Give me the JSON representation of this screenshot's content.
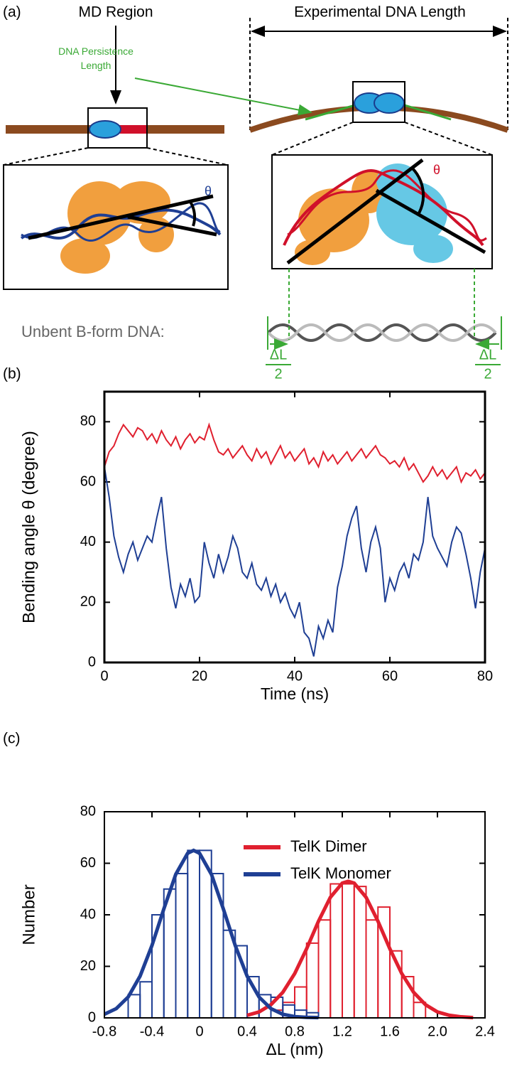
{
  "panel_a": {
    "label": "(a)",
    "md_region": "MD Region",
    "experimental_length": "Experimental DNA Length",
    "persistence_length": "DNA Persistence Length",
    "theta_monomer": "θ",
    "theta_dimer": "θ",
    "unbent_label": "Unbent B-form DNA:",
    "delta_l": "ΔL",
    "half": "2"
  },
  "chart_data": [
    {
      "type": "line",
      "panel_label": "(b)",
      "xlabel": "Time (ns)",
      "ylabel": "Bending angle θ (degree)",
      "xlim": [
        0,
        80
      ],
      "xticks": [
        0,
        20,
        40,
        60,
        80
      ],
      "ylim": [
        0,
        90
      ],
      "yticks": [
        0,
        20,
        40,
        60,
        80
      ],
      "x": [
        0,
        1,
        2,
        3,
        4,
        5,
        6,
        7,
        8,
        9,
        10,
        11,
        12,
        13,
        14,
        15,
        16,
        17,
        18,
        19,
        20,
        21,
        22,
        23,
        24,
        25,
        26,
        27,
        28,
        29,
        30,
        31,
        32,
        33,
        34,
        35,
        36,
        37,
        38,
        39,
        40,
        41,
        42,
        43,
        44,
        45,
        46,
        47,
        48,
        49,
        50,
        51,
        52,
        53,
        54,
        55,
        56,
        57,
        58,
        59,
        60,
        61,
        62,
        63,
        64,
        65,
        66,
        67,
        68,
        69,
        70,
        71,
        72,
        73,
        74,
        75,
        76,
        77,
        78,
        79,
        80
      ],
      "series": [
        {
          "color": "#e0202f",
          "values": [
            65,
            70,
            72,
            76,
            79,
            77,
            75,
            78,
            77,
            74,
            76,
            73,
            77,
            74,
            72,
            75,
            71,
            74,
            76,
            73,
            75,
            74,
            79,
            74,
            70,
            69,
            71,
            68,
            70,
            72,
            69,
            67,
            71,
            68,
            70,
            66,
            69,
            72,
            68,
            70,
            67,
            69,
            71,
            66,
            68,
            65,
            70,
            67,
            69,
            66,
            68,
            70,
            67,
            69,
            71,
            68,
            70,
            72,
            69,
            68,
            66,
            67,
            65,
            68,
            64,
            66,
            63,
            60,
            62,
            65,
            62,
            64,
            61,
            63,
            65,
            60,
            63,
            62,
            64,
            61,
            63
          ]
        },
        {
          "color": "#1f3f94",
          "values": [
            65,
            55,
            42,
            35,
            30,
            36,
            40,
            34,
            38,
            42,
            40,
            48,
            55,
            38,
            25,
            18,
            26,
            22,
            28,
            20,
            22,
            40,
            33,
            28,
            36,
            30,
            35,
            42,
            38,
            30,
            28,
            33,
            26,
            24,
            28,
            22,
            26,
            20,
            23,
            18,
            15,
            20,
            10,
            8,
            2,
            12,
            8,
            14,
            10,
            25,
            32,
            42,
            48,
            52,
            38,
            30,
            40,
            45,
            38,
            20,
            28,
            24,
            30,
            33,
            28,
            36,
            34,
            40,
            55,
            42,
            38,
            35,
            32,
            40,
            45,
            43,
            36,
            28,
            18,
            30,
            38
          ]
        }
      ]
    },
    {
      "type": "histogram",
      "panel_label": "(c)",
      "xlabel": "ΔL (nm)",
      "ylabel": "Number",
      "xlim": [
        -0.8,
        2.4
      ],
      "xticks": [
        -0.8,
        -0.4,
        0,
        0.4,
        0.8,
        1.2,
        1.6,
        {
          "value": 2,
          "label": "2.0"
        },
        2.4
      ],
      "ylim": [
        0,
        80
      ],
      "yticks": [
        0,
        20,
        40,
        60,
        80
      ],
      "legend": "upper right",
      "series": [
        {
          "name": "TelK Dimer",
          "color": "#e0202f",
          "bins": [
            0.6,
            0.7,
            0.8,
            0.9,
            1.0,
            1.1,
            1.2,
            1.3,
            1.4,
            1.5,
            1.6,
            1.7,
            1.8,
            1.9
          ],
          "values": [
            3,
            6,
            12,
            29,
            38,
            52,
            52,
            51,
            38,
            43,
            26,
            16,
            6
          ],
          "fit": {
            "x": [
              0.4,
              0.5,
              0.6,
              0.7,
              0.8,
              0.9,
              1.0,
              1.1,
              1.2,
              1.25,
              1.3,
              1.4,
              1.5,
              1.6,
              1.7,
              1.8,
              1.9,
              2.0,
              2.1,
              2.2,
              2.3
            ],
            "values": [
              1.0,
              2.3,
              5.1,
              9.9,
              17.2,
              26.8,
              37.5,
              46.8,
              52.3,
              53,
              52.3,
              46.8,
              37.5,
              26.8,
              17.2,
              9.9,
              5.1,
              2.3,
              1.0,
              0.4,
              0.1
            ]
          }
        },
        {
          "name": "TelK Monomer",
          "color": "#1f3f94",
          "bins": [
            -0.6,
            -0.5,
            -0.4,
            -0.3,
            -0.2,
            -0.1,
            0,
            0.1,
            0.2,
            0.3,
            0.4,
            0.5,
            0.6,
            0.7,
            0.8,
            0.9,
            1.0
          ],
          "values": [
            9,
            14,
            40,
            50,
            56,
            65,
            65,
            56,
            34,
            28,
            16,
            9,
            8,
            5,
            3,
            2
          ],
          "fit": {
            "x": [
              -0.8,
              -0.7,
              -0.6,
              -0.5,
              -0.4,
              -0.3,
              -0.2,
              -0.1,
              -0.05,
              0,
              0.1,
              0.2,
              0.3,
              0.4,
              0.5,
              0.6,
              0.7,
              0.8,
              0.9,
              1.0
            ],
            "values": [
              1.4,
              3.6,
              8.1,
              16.2,
              28.1,
              42.3,
              55.7,
              63.9,
              65,
              63.9,
              55.7,
              42.3,
              28.1,
              16.2,
              8.1,
              3.6,
              1.4,
              0.5,
              0.2,
              0.1
            ]
          }
        }
      ]
    }
  ]
}
